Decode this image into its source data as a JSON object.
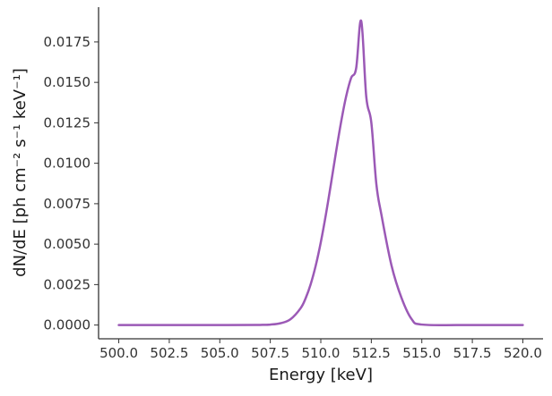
{
  "chart_data": {
    "type": "line",
    "title": "",
    "xlabel": "Energy [keV]",
    "ylabel": "dN/dE [ph cm⁻² s⁻¹ keV⁻¹]",
    "xlim": [
      499.0,
      521.0
    ],
    "ylim": [
      -0.00085,
      0.01965
    ],
    "grid": false,
    "legend": "none",
    "x_ticks": [
      500.0,
      502.5,
      505.0,
      507.5,
      510.0,
      512.5,
      515.0,
      517.5,
      520.0
    ],
    "x_tick_labels": [
      "500.0",
      "502.5",
      "505.0",
      "507.5",
      "510.0",
      "512.5",
      "515.0",
      "517.5",
      "520.0"
    ],
    "y_ticks": [
      0.0,
      0.0025,
      0.005,
      0.0075,
      0.01,
      0.0125,
      0.015,
      0.0175
    ],
    "y_tick_labels": [
      "0.0000",
      "0.0025",
      "0.0050",
      "0.0075",
      "0.0100",
      "0.0125",
      "0.0150",
      "0.0175"
    ],
    "series": [
      {
        "color": "#9b59b6",
        "x": [
          500.0,
          505.0,
          507.0,
          507.5,
          508.0,
          508.5,
          509.0,
          509.25,
          509.5,
          509.75,
          510.0,
          510.25,
          510.5,
          510.75,
          511.0,
          511.25,
          511.5,
          511.75,
          512.0,
          512.25,
          512.5,
          512.75,
          513.0,
          513.5,
          514.0,
          514.5,
          515.0,
          517.0,
          520.0
        ],
        "y": [
          0.0,
          0.0,
          1e-05,
          3e-05,
          0.00011,
          0.00036,
          0.00104,
          0.00166,
          0.00253,
          0.00368,
          0.00512,
          0.00682,
          0.00871,
          0.01067,
          0.01252,
          0.01411,
          0.01527,
          0.01588,
          0.0188,
          0.01411,
          0.01252,
          0.00871,
          0.00682,
          0.00368,
          0.00166,
          0.00036,
          3e-05,
          0.0,
          0.0
        ]
      }
    ]
  }
}
